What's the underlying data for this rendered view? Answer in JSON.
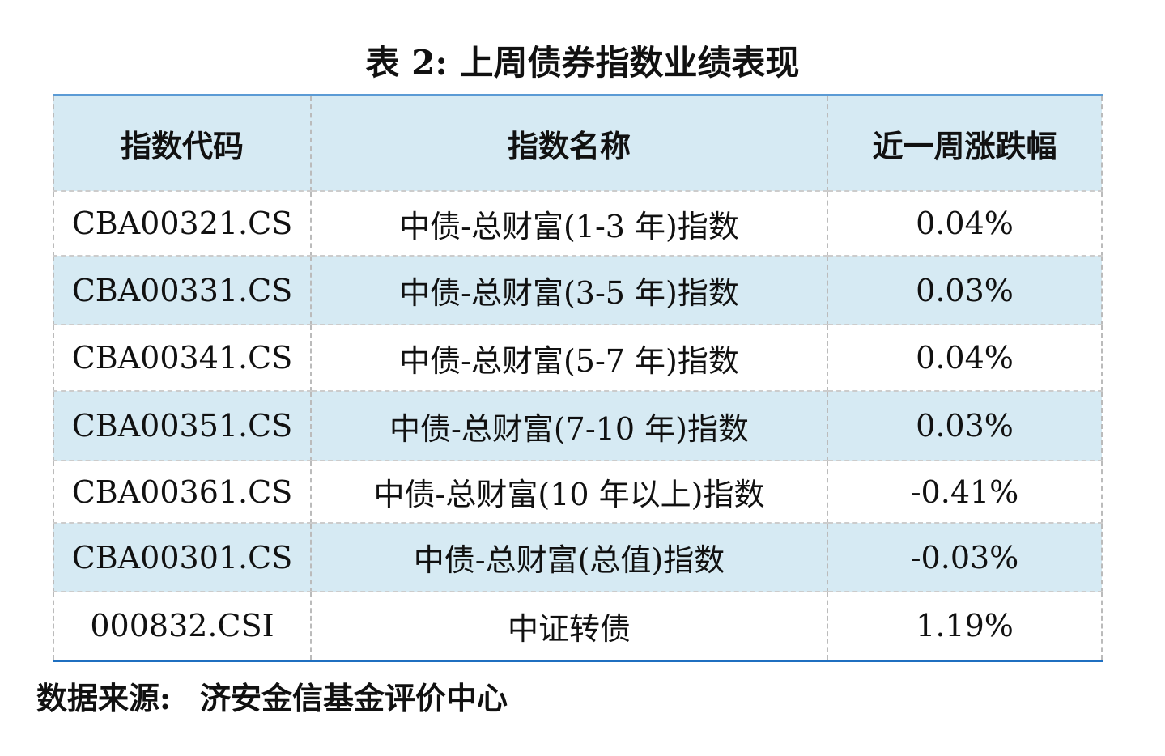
{
  "title": "表 2: 上周债券指数业绩表现",
  "table": {
    "headers": [
      "指数代码",
      "指数名称",
      "近一周涨跌幅"
    ],
    "rows": [
      [
        "CBA00321.CS",
        "中债-总财富(1-3 年)指数",
        "0.04%"
      ],
      [
        "CBA00331.CS",
        "中债-总财富(3-5 年)指数",
        "0.03%"
      ],
      [
        "CBA00341.CS",
        "中债-总财富(5-7 年)指数",
        "0.04%"
      ],
      [
        "CBA00351.CS",
        "中债-总财富(7-10 年)指数",
        "0.03%"
      ],
      [
        "CBA00361.CS",
        "中债-总财富(10 年以上)指数",
        "-0.41%"
      ],
      [
        "CBA00301.CS",
        "中债-总财富(总值)指数",
        "-0.03%"
      ],
      [
        "000832.CSI",
        "中证转债",
        "1.19%"
      ]
    ]
  },
  "source": {
    "label": "数据来源:",
    "text": "济安金信基金评价中心"
  }
}
